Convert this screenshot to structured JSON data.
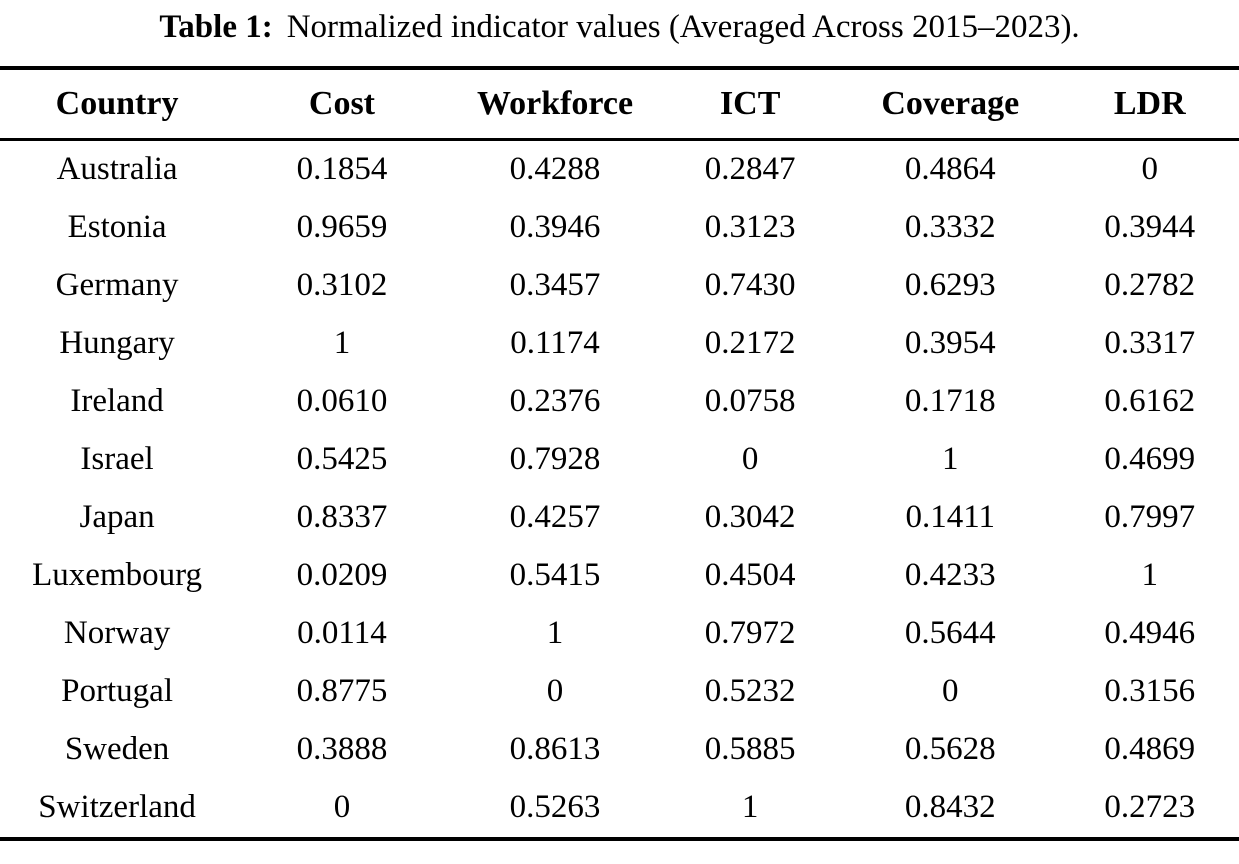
{
  "caption": {
    "label": "Table 1:",
    "text": "Normalized indicator values (Averaged Across 2015–2023)."
  },
  "table": {
    "columns": [
      "Country",
      "Cost",
      "Workforce",
      "ICT",
      "Coverage",
      "LDR"
    ],
    "rows": [
      {
        "country": "Australia",
        "values": [
          "0.1854",
          "0.4288",
          "0.2847",
          "0.4864",
          "0"
        ]
      },
      {
        "country": "Estonia",
        "values": [
          "0.9659",
          "0.3946",
          "0.3123",
          "0.3332",
          "0.3944"
        ]
      },
      {
        "country": "Germany",
        "values": [
          "0.3102",
          "0.3457",
          "0.7430",
          "0.6293",
          "0.2782"
        ]
      },
      {
        "country": "Hungary",
        "values": [
          "1",
          "0.1174",
          "0.2172",
          "0.3954",
          "0.3317"
        ]
      },
      {
        "country": "Ireland",
        "values": [
          "0.0610",
          "0.2376",
          "0.0758",
          "0.1718",
          "0.6162"
        ]
      },
      {
        "country": "Israel",
        "values": [
          "0.5425",
          "0.7928",
          "0",
          "1",
          "0.4699"
        ]
      },
      {
        "country": "Japan",
        "values": [
          "0.8337",
          "0.4257",
          "0.3042",
          "0.1411",
          "0.7997"
        ]
      },
      {
        "country": "Luxembourg",
        "values": [
          "0.0209",
          "0.5415",
          "0.4504",
          "0.4233",
          "1"
        ]
      },
      {
        "country": "Norway",
        "values": [
          "0.0114",
          "1",
          "0.7972",
          "0.5644",
          "0.4946"
        ]
      },
      {
        "country": "Portugal",
        "values": [
          "0.8775",
          "0",
          "0.5232",
          "0",
          "0.3156"
        ]
      },
      {
        "country": "Sweden",
        "values": [
          "0.3888",
          "0.8613",
          "0.5885",
          "0.5628",
          "0.4869"
        ]
      },
      {
        "country": "Switzerland",
        "values": [
          "0",
          "0.5263",
          "1",
          "0.8432",
          "0.2723"
        ]
      }
    ]
  }
}
